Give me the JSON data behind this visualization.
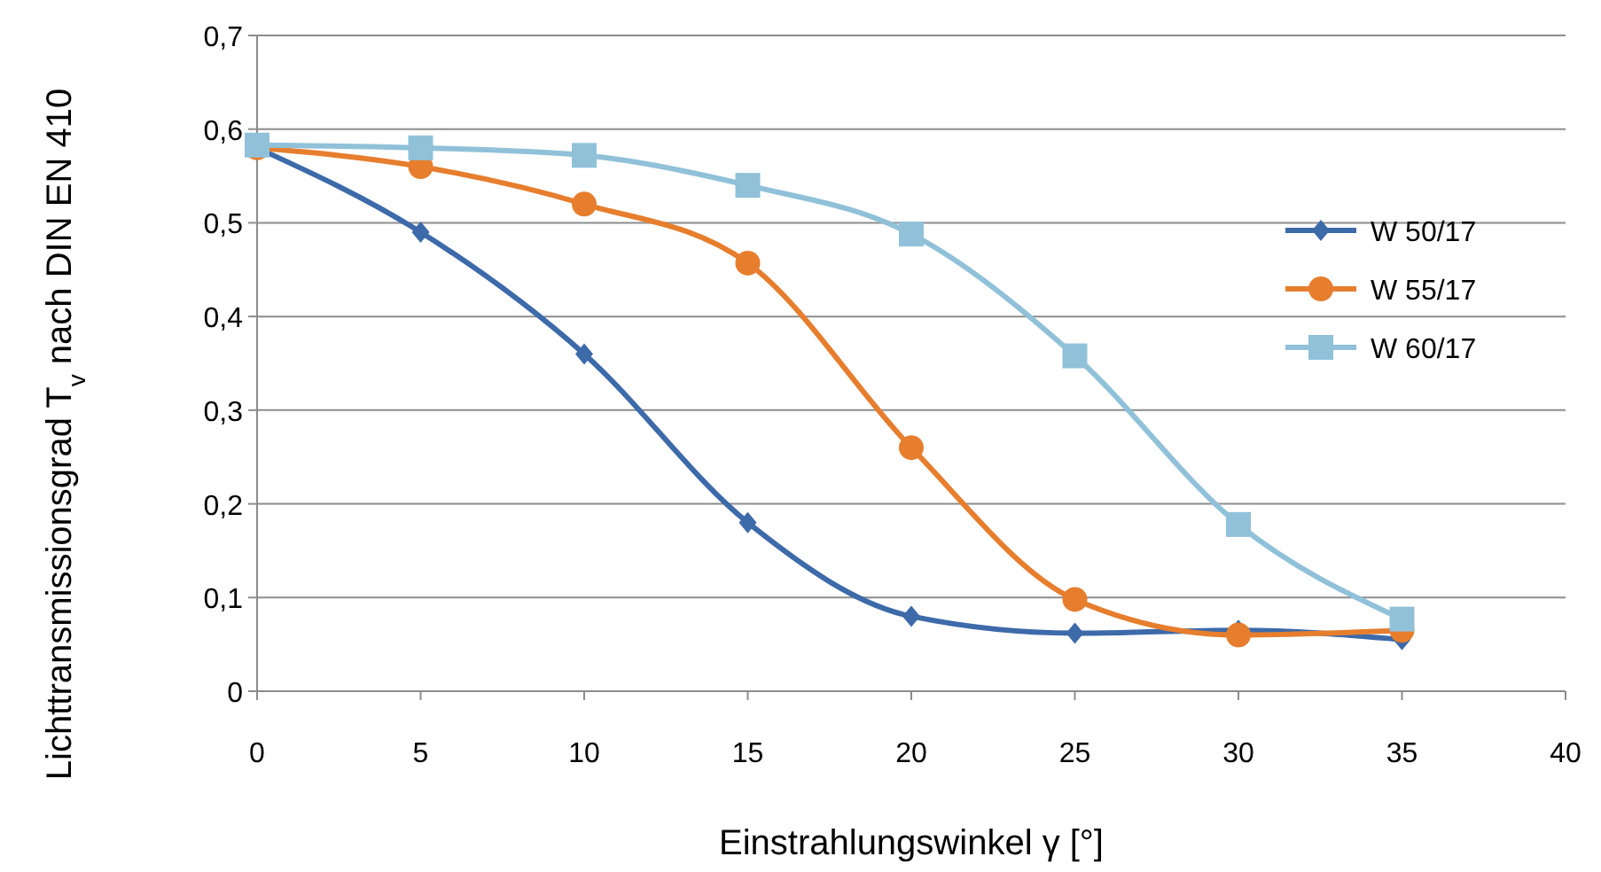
{
  "chart_data": {
    "type": "line",
    "xlabel": "Einstrahlungswinkel γ [°]",
    "ylabel": "Lichttransmissionsgrad T$_{v}$ nach DIN EN 410",
    "x": [
      0,
      5,
      10,
      15,
      20,
      25,
      30,
      35
    ],
    "series": [
      {
        "name": "W 50/17",
        "color": "#3d6aa9",
        "marker": "diamond",
        "values": [
          0.58,
          0.49,
          0.36,
          0.18,
          0.08,
          0.062,
          0.065,
          0.055
        ]
      },
      {
        "name": "W 55/17",
        "color": "#e67e2e",
        "marker": "circle",
        "values": [
          0.58,
          0.56,
          0.52,
          0.457,
          0.26,
          0.098,
          0.06,
          0.065
        ]
      },
      {
        "name": "W 60/17",
        "color": "#90c1d9",
        "marker": "square",
        "values": [
          0.583,
          0.58,
          0.572,
          0.54,
          0.488,
          0.358,
          0.178,
          0.077
        ]
      }
    ],
    "xlim": [
      0,
      40
    ],
    "xticks": [
      0,
      5,
      10,
      15,
      20,
      25,
      30,
      35,
      40
    ],
    "ylim": [
      0,
      0.7
    ],
    "yticks": [
      0,
      {
        "value": 0.1,
        "label": "0,1"
      },
      {
        "value": 0.2,
        "label": "0,2"
      },
      {
        "value": 0.3,
        "label": "0,3"
      },
      {
        "value": 0.4,
        "label": "0,4"
      },
      {
        "value": 0.5,
        "label": "0,5"
      },
      {
        "value": 0.6,
        "label": "0,6"
      },
      {
        "value": 0.7,
        "label": "0,7"
      }
    ],
    "grid": "y",
    "legend": "right",
    "line_style": "solid"
  }
}
